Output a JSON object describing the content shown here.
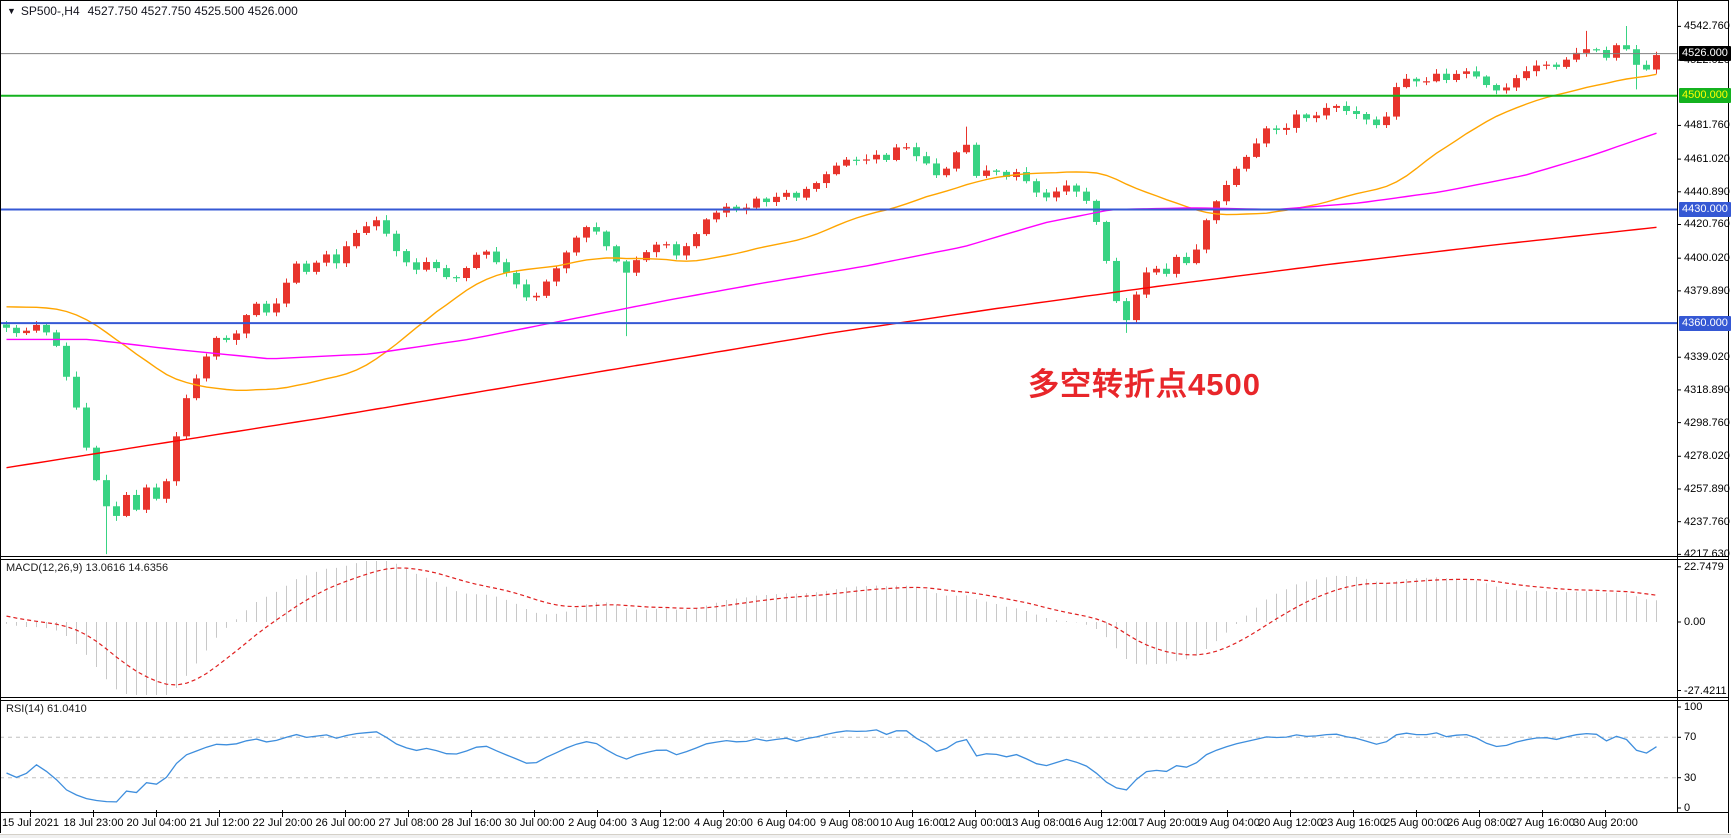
{
  "window": {
    "symbol_title": "SP500-,H4",
    "ohlc_quote": "4527.750 4527.750 4525.500 4526.000"
  },
  "annotation": {
    "text": "多空转折点4500",
    "color": "#e8262a"
  },
  "indicators": {
    "macd": {
      "name": "MACD(12,26,9)",
      "values": "13.0616 14.6356",
      "axis_labels": [
        "22.7479",
        "0.00",
        "-27.4211"
      ],
      "params": {
        "fast": 12,
        "slow": 26,
        "signal": 9
      },
      "ylim": [
        -28.2,
        23.5
      ]
    },
    "rsi": {
      "name": "RSI(14)",
      "value": "61.0410",
      "axis_labels": [
        "100",
        "70",
        "30",
        "0"
      ],
      "levels": [
        70,
        30
      ],
      "period": 14
    }
  },
  "chart_data": {
    "type": "candlestick",
    "symbol": "SP500-",
    "timeframe": "H4",
    "n_candles": 166,
    "price_axis_ticks": [
      "4542.760",
      "4522.020",
      "4481.760",
      "4461.020",
      "4440.890",
      "4420.760",
      "4400.020",
      "4379.890",
      "4339.020",
      "4318.890",
      "4298.760",
      "4278.020",
      "4257.890",
      "4237.760",
      "4217.630"
    ],
    "time_labels": [
      "15 Jul 2021",
      "18 Jul 23:00",
      "20 Jul 04:00",
      "21 Jul 12:00",
      "22 Jul 20:00",
      "26 Jul 00:00",
      "27 Jul 08:00",
      "28 Jul 16:00",
      "30 Jul 00:00",
      "2 Aug 04:00",
      "3 Aug 12:00",
      "4 Aug 20:00",
      "6 Aug 04:00",
      "9 Aug 08:00",
      "10 Aug 16:00",
      "12 Aug 00:00",
      "13 Aug 08:00",
      "16 Aug 12:00",
      "17 Aug 20:00",
      "19 Aug 04:00",
      "20 Aug 12:00",
      "23 Aug 16:00",
      "25 Aug 00:00",
      "26 Aug 08:00",
      "27 Aug 16:00",
      "30 Aug 20:00"
    ],
    "levels": [
      {
        "label": "4526.000",
        "price": 4526,
        "line_color": "#808080",
        "line_width": 1,
        "badge_bg": "#000000",
        "badge_fg": "#ffffff",
        "role": "current-price"
      },
      {
        "label": "4500.000",
        "price": 4500,
        "line_color": "#14b21f",
        "line_width": 2,
        "badge_bg": "#14b21f",
        "badge_fg": "#ffff00",
        "role": "pivot-level"
      },
      {
        "label": "4430.000",
        "price": 4430,
        "line_color": "#3558d4",
        "line_width": 2,
        "badge_bg": "#3558d4",
        "badge_fg": "#ffffff",
        "role": "support-level"
      },
      {
        "label": "4360.000",
        "price": 4360,
        "line_color": "#3558d4",
        "line_width": 2,
        "badge_bg": "#3558d4",
        "badge_fg": "#ffffff",
        "role": "support-level"
      }
    ],
    "close_anchors": [
      [
        0.0,
        4357
      ],
      [
        0.01,
        4353
      ],
      [
        0.02,
        4360
      ],
      [
        0.03,
        4347
      ],
      [
        0.042,
        4310
      ],
      [
        0.052,
        4270
      ],
      [
        0.06,
        4247
      ],
      [
        0.066,
        4240
      ],
      [
        0.072,
        4255
      ],
      [
        0.078,
        4242
      ],
      [
        0.085,
        4260
      ],
      [
        0.092,
        4250
      ],
      [
        0.1,
        4272
      ],
      [
        0.106,
        4310
      ],
      [
        0.112,
        4318
      ],
      [
        0.12,
        4338
      ],
      [
        0.128,
        4352
      ],
      [
        0.136,
        4348
      ],
      [
        0.144,
        4362
      ],
      [
        0.152,
        4372
      ],
      [
        0.16,
        4365
      ],
      [
        0.168,
        4382
      ],
      [
        0.176,
        4396
      ],
      [
        0.184,
        4390
      ],
      [
        0.192,
        4403
      ],
      [
        0.2,
        4398
      ],
      [
        0.208,
        4411
      ],
      [
        0.216,
        4419
      ],
      [
        0.224,
        4423
      ],
      [
        0.232,
        4412
      ],
      [
        0.24,
        4400
      ],
      [
        0.248,
        4393
      ],
      [
        0.256,
        4399
      ],
      [
        0.264,
        4389
      ],
      [
        0.272,
        4386
      ],
      [
        0.28,
        4396
      ],
      [
        0.288,
        4406
      ],
      [
        0.296,
        4398
      ],
      [
        0.304,
        4390
      ],
      [
        0.312,
        4379
      ],
      [
        0.32,
        4374
      ],
      [
        0.328,
        4386
      ],
      [
        0.336,
        4399
      ],
      [
        0.344,
        4411
      ],
      [
        0.352,
        4420
      ],
      [
        0.36,
        4414
      ],
      [
        0.368,
        4402
      ],
      [
        0.374,
        4390
      ],
      [
        0.382,
        4399
      ],
      [
        0.39,
        4406
      ],
      [
        0.398,
        4411
      ],
      [
        0.406,
        4401
      ],
      [
        0.414,
        4409
      ],
      [
        0.422,
        4421
      ],
      [
        0.43,
        4429
      ],
      [
        0.438,
        4432
      ],
      [
        0.446,
        4428
      ],
      [
        0.454,
        4438
      ],
      [
        0.462,
        4433
      ],
      [
        0.47,
        4441
      ],
      [
        0.478,
        4437
      ],
      [
        0.486,
        4445
      ],
      [
        0.494,
        4449
      ],
      [
        0.502,
        4456
      ],
      [
        0.51,
        4462
      ],
      [
        0.518,
        4458
      ],
      [
        0.526,
        4465
      ],
      [
        0.534,
        4461
      ],
      [
        0.542,
        4470
      ],
      [
        0.55,
        4465
      ],
      [
        0.558,
        4457
      ],
      [
        0.566,
        4448
      ],
      [
        0.574,
        4462
      ],
      [
        0.58,
        4476
      ],
      [
        0.588,
        4450
      ],
      [
        0.596,
        4456
      ],
      [
        0.604,
        4449
      ],
      [
        0.612,
        4453
      ],
      [
        0.62,
        4445
      ],
      [
        0.628,
        4437
      ],
      [
        0.636,
        4441
      ],
      [
        0.644,
        4445
      ],
      [
        0.652,
        4439
      ],
      [
        0.658,
        4431
      ],
      [
        0.666,
        4402
      ],
      [
        0.672,
        4374
      ],
      [
        0.678,
        4361
      ],
      [
        0.686,
        4381
      ],
      [
        0.694,
        4396
      ],
      [
        0.702,
        4389
      ],
      [
        0.71,
        4401
      ],
      [
        0.718,
        4394
      ],
      [
        0.726,
        4421
      ],
      [
        0.734,
        4436
      ],
      [
        0.742,
        4449
      ],
      [
        0.75,
        4461
      ],
      [
        0.758,
        4471
      ],
      [
        0.766,
        4482
      ],
      [
        0.774,
        4478
      ],
      [
        0.782,
        4489
      ],
      [
        0.79,
        4485
      ],
      [
        0.798,
        4493
      ],
      [
        0.806,
        4494
      ],
      [
        0.814,
        4490
      ],
      [
        0.822,
        4486
      ],
      [
        0.83,
        4481
      ],
      [
        0.838,
        4490
      ],
      [
        0.842,
        4506
      ],
      [
        0.85,
        4512
      ],
      [
        0.858,
        4508
      ],
      [
        0.866,
        4514
      ],
      [
        0.874,
        4510
      ],
      [
        0.882,
        4516
      ],
      [
        0.89,
        4512
      ],
      [
        0.898,
        4507
      ],
      [
        0.906,
        4503
      ],
      [
        0.914,
        4509
      ],
      [
        0.922,
        4515
      ],
      [
        0.93,
        4519
      ],
      [
        0.938,
        4517
      ],
      [
        0.946,
        4522
      ],
      [
        0.954,
        4527
      ],
      [
        0.962,
        4530
      ],
      [
        0.97,
        4523
      ],
      [
        0.978,
        4536
      ],
      [
        0.986,
        4523
      ],
      [
        0.992,
        4512
      ],
      [
        0.996,
        4520
      ],
      [
        1.0,
        4526
      ]
    ],
    "wick_events": [
      {
        "t": 0.063,
        "low": 4217.8
      },
      {
        "t": 0.375,
        "low": 4352
      },
      {
        "t": 0.582,
        "high": 4481
      },
      {
        "t": 0.68,
        "low": 4354
      },
      {
        "t": 0.955,
        "high": 4540
      },
      {
        "t": 0.979,
        "high": 4543
      },
      {
        "t": 0.99,
        "low": 4504
      }
    ],
    "pre_history": {
      "bars": 50,
      "path": [
        [
          0,
          4320
        ],
        [
          0.7,
          4384
        ],
        [
          1,
          4357
        ]
      ]
    },
    "moving_averages": {
      "fast_sma_period": 30,
      "mid_anchors": [
        [
          0,
          4350
        ],
        [
          0.05,
          4350
        ],
        [
          0.1,
          4344
        ],
        [
          0.16,
          4338
        ],
        [
          0.22,
          4341
        ],
        [
          0.28,
          4350
        ],
        [
          0.34,
          4362
        ],
        [
          0.4,
          4374
        ],
        [
          0.46,
          4385
        ],
        [
          0.52,
          4395
        ],
        [
          0.58,
          4407
        ],
        [
          0.63,
          4422
        ],
        [
          0.67,
          4430
        ],
        [
          0.72,
          4431
        ],
        [
          0.77,
          4430
        ],
        [
          0.82,
          4434
        ],
        [
          0.87,
          4441
        ],
        [
          0.92,
          4451
        ],
        [
          0.96,
          4463
        ],
        [
          1.0,
          4477
        ]
      ],
      "slow_anchors": [
        [
          0,
          4271
        ],
        [
          0.1,
          4287
        ],
        [
          0.2,
          4303
        ],
        [
          0.3,
          4320
        ],
        [
          0.4,
          4337
        ],
        [
          0.5,
          4354
        ],
        [
          0.6,
          4369
        ],
        [
          0.7,
          4383
        ],
        [
          0.8,
          4396
        ],
        [
          0.9,
          4408
        ],
        [
          1.0,
          4419
        ]
      ]
    },
    "colors": {
      "bull_candle": "#e8342c",
      "bear_candle": "#38d383",
      "ma_fast": "#ffa500",
      "ma_mid": "#ff00ff",
      "ma_slow": "#ff0000",
      "macd_hist": "#c8c8c8",
      "macd_signal": "#e02020",
      "rsi_line": "#3e8edd",
      "level_dashed": "#c0c0c0",
      "border": "#000000"
    },
    "ylim": [
      4216,
      4559
    ]
  }
}
